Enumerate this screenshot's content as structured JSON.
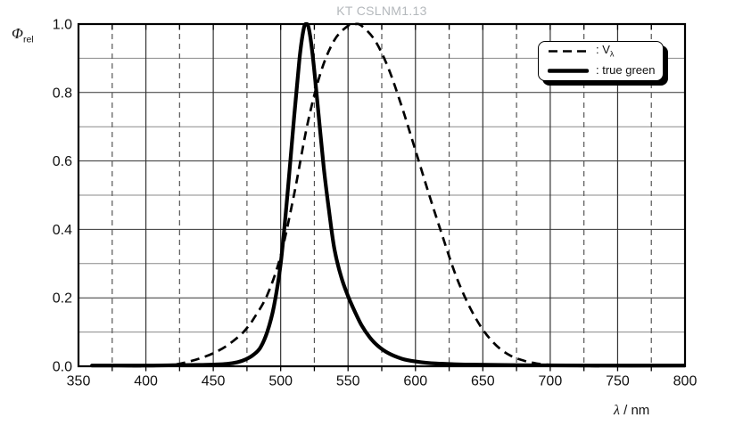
{
  "header": {
    "title": "KT CSLNM1.13",
    "title_color": "#b4b8bc"
  },
  "axes": {
    "y_label": {
      "symbol": "Φ",
      "subscript": "rel"
    },
    "x_label": {
      "symbol": "λ",
      "unit": " / nm"
    }
  },
  "legend": {
    "entries": [
      {
        "label": ": V",
        "label_sub": "λ",
        "line_style": "dashed"
      },
      {
        "label": ": true green",
        "label_sub": "",
        "line_style": "solid"
      }
    ]
  },
  "colors": {
    "curve": "#000000",
    "grid_major": "#333333",
    "grid_minor_h": "#8a8a8a",
    "grid_minor_v": "#555555",
    "border": "#000000",
    "tick_label": "#111111"
  },
  "chart_data": {
    "type": "line",
    "title": "KT CSLNM1.13",
    "xlabel": "λ / nm",
    "ylabel": "Φ_rel",
    "xlim": [
      350,
      800
    ],
    "ylim": [
      0.0,
      1.0
    ],
    "x_major_step": 50,
    "x_minor_step": 25,
    "y_major_step": 0.2,
    "y_minor_step": 0.1,
    "x_tick_labels": [
      "350",
      "400",
      "450",
      "500",
      "550",
      "600",
      "650",
      "700",
      "750",
      "800"
    ],
    "y_tick_labels": [
      "0.0",
      "0.2",
      "0.4",
      "0.6",
      "0.8",
      "1.0"
    ],
    "grid": true,
    "legend_position": "top-right",
    "series": [
      {
        "name": "V_λ",
        "style": "dashed",
        "peak_nm": 555,
        "x": [
          390,
          400,
          410,
          420,
          430,
          440,
          450,
          460,
          470,
          475,
          480,
          490,
          500,
          510,
          520,
          530,
          540,
          550,
          555,
          560,
          570,
          580,
          590,
          600,
          610,
          620,
          630,
          640,
          650,
          660,
          670,
          680,
          690,
          700,
          710,
          720,
          730,
          740
        ],
        "y": [
          0.0002,
          0.0004,
          0.0012,
          0.004,
          0.0116,
          0.023,
          0.038,
          0.06,
          0.091,
          0.112,
          0.139,
          0.208,
          0.323,
          0.503,
          0.71,
          0.862,
          0.954,
          0.995,
          1.0,
          0.995,
          0.952,
          0.87,
          0.757,
          0.631,
          0.503,
          0.381,
          0.265,
          0.175,
          0.107,
          0.061,
          0.032,
          0.017,
          0.0082,
          0.0041,
          0.0021,
          0.001,
          0.0005,
          0.0002
        ]
      },
      {
        "name": "true green",
        "style": "solid",
        "peak_nm": 519,
        "x": [
          360,
          380,
          400,
          420,
          440,
          450,
          460,
          468,
          474,
          480,
          485,
          490,
          495,
          500,
          505,
          510,
          514,
          517,
          519,
          521,
          524,
          528,
          532,
          536,
          540,
          545,
          550,
          555,
          560,
          566,
          572,
          580,
          590,
          600,
          615,
          640,
          680,
          730,
          800
        ],
        "y": [
          0.002,
          0.002,
          0.002,
          0.003,
          0.004,
          0.005,
          0.007,
          0.012,
          0.02,
          0.034,
          0.055,
          0.1,
          0.175,
          0.3,
          0.5,
          0.73,
          0.9,
          0.985,
          1.0,
          0.985,
          0.9,
          0.74,
          0.58,
          0.45,
          0.34,
          0.26,
          0.205,
          0.16,
          0.12,
          0.085,
          0.06,
          0.038,
          0.022,
          0.014,
          0.008,
          0.005,
          0.003,
          0.002,
          0.002
        ]
      }
    ]
  }
}
